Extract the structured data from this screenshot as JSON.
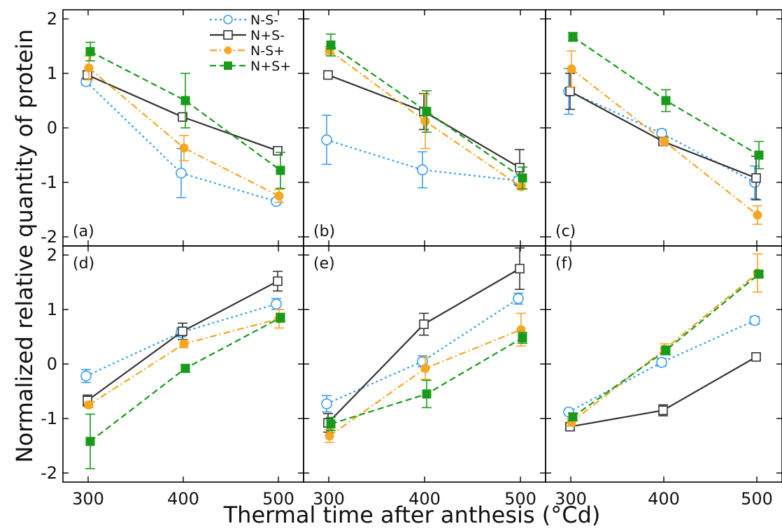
{
  "figure": {
    "ylabel": "Normalized relative quantity of protein",
    "xlabel": "Thermal time after anthesis (°Cd)"
  },
  "series_styles": [
    {
      "name": "N-S-",
      "color": "#3b9ff0",
      "dash": "3,4",
      "marker": "circle-open"
    },
    {
      "name": "N+S-",
      "color": "#333333",
      "dash": "",
      "marker": "square-open"
    },
    {
      "name": "N-S+",
      "color": "#f5a623",
      "dash": "10,4,2,4",
      "marker": "circle-filled"
    },
    {
      "name": "N+S+",
      "color": "#1a9a1a",
      "dash": "9,5",
      "marker": "square-filled"
    }
  ],
  "chart_data": [
    {
      "type": "line",
      "label": "(a)",
      "x": [
        300,
        400,
        500
      ],
      "xticks": [
        300,
        400,
        500
      ],
      "yticks": [
        -2,
        -1,
        0,
        1,
        2
      ],
      "xlim": [
        275,
        525
      ],
      "ylim": [
        -2.2,
        2.2
      ],
      "series": [
        {
          "name": "N-S-",
          "values": [
            0.85,
            -0.83,
            -1.35
          ],
          "err": [
            0.06,
            0.45,
            0.05
          ]
        },
        {
          "name": "N+S-",
          "values": [
            0.97,
            0.2,
            -0.42
          ],
          "err": [
            0.06,
            0.05,
            0.07
          ]
        },
        {
          "name": "N-S+",
          "values": [
            1.1,
            -0.37,
            -1.25
          ],
          "err": [
            0.22,
            0.23,
            0.12
          ]
        },
        {
          "name": "N+S+",
          "values": [
            1.4,
            0.5,
            -0.78
          ],
          "err": [
            0.17,
            0.5,
            0.33
          ]
        }
      ]
    },
    {
      "type": "line",
      "label": "(b)",
      "x": [
        300,
        400,
        500
      ],
      "xticks": [
        300,
        400,
        500
      ],
      "yticks": [
        -2,
        -1,
        0,
        1,
        2
      ],
      "xlim": [
        275,
        525
      ],
      "ylim": [
        -2.2,
        2.2
      ],
      "series": [
        {
          "name": "N-S-",
          "values": [
            -0.22,
            -0.77,
            -0.97
          ],
          "err": [
            0.45,
            0.33,
            0.07
          ]
        },
        {
          "name": "N+S-",
          "values": [
            0.97,
            0.3,
            -0.73
          ],
          "err": [
            0.05,
            0.33,
            0.33
          ]
        },
        {
          "name": "N-S+",
          "values": [
            1.42,
            0.12,
            -1.08
          ],
          "err": [
            0.07,
            0.5,
            0.05
          ]
        },
        {
          "name": "N+S+",
          "values": [
            1.52,
            0.3,
            -0.92
          ],
          "err": [
            0.2,
            0.38,
            0.2
          ]
        }
      ]
    },
    {
      "type": "line",
      "label": "(c)",
      "x": [
        300,
        400,
        500
      ],
      "xticks": [
        300,
        400,
        500
      ],
      "yticks": [
        -2,
        -1,
        0,
        1,
        2
      ],
      "xlim": [
        275,
        525
      ],
      "ylim": [
        -2.2,
        2.2
      ],
      "series": [
        {
          "name": "N-S-",
          "values": [
            0.67,
            -0.1,
            -1.0
          ],
          "err": [
            0.42,
            0.07,
            0.3
          ]
        },
        {
          "name": "N+S-",
          "values": [
            0.67,
            -0.25,
            -0.92
          ],
          "err": [
            0.33,
            0.05,
            0.4
          ]
        },
        {
          "name": "N-S+",
          "values": [
            1.08,
            -0.25,
            -1.6
          ],
          "err": [
            0.33,
            0.07,
            0.17
          ]
        },
        {
          "name": "N+S+",
          "values": [
            1.67,
            0.5,
            -0.5
          ],
          "err": [
            0.08,
            0.2,
            0.25
          ]
        }
      ]
    },
    {
      "type": "line",
      "label": "(d)",
      "x": [
        300,
        400,
        500
      ],
      "xticks": [
        300,
        400,
        500
      ],
      "yticks": [
        -2,
        -1,
        0,
        1,
        2
      ],
      "xlim": [
        275,
        525
      ],
      "ylim": [
        -2.2,
        2.2
      ],
      "series": [
        {
          "name": "N-S-",
          "values": [
            -0.22,
            0.58,
            1.1
          ],
          "err": [
            0.12,
            0.08,
            0.1
          ]
        },
        {
          "name": "N+S-",
          "values": [
            -0.67,
            0.6,
            1.52
          ],
          "err": [
            0.1,
            0.15,
            0.18
          ]
        },
        {
          "name": "N-S+",
          "values": [
            -0.75,
            0.37,
            0.83
          ],
          "err": [
            0.05,
            0.07,
            0.17
          ]
        },
        {
          "name": "N+S+",
          "values": [
            -1.42,
            -0.08,
            0.85
          ],
          "err": [
            0.5,
            0.07,
            0.08
          ]
        }
      ]
    },
    {
      "type": "line",
      "label": "(e)",
      "x": [
        300,
        400,
        500
      ],
      "xticks": [
        300,
        400,
        500
      ],
      "yticks": [
        -2,
        -1,
        0,
        1,
        2
      ],
      "xlim": [
        275,
        525
      ],
      "ylim": [
        -2.2,
        2.2
      ],
      "series": [
        {
          "name": "N-S-",
          "values": [
            -0.73,
            0.05,
            1.2
          ],
          "err": [
            0.15,
            0.1,
            0.1
          ]
        },
        {
          "name": "N+S-",
          "values": [
            -1.08,
            0.73,
            1.75
          ],
          "err": [
            0.17,
            0.2,
            0.38
          ]
        },
        {
          "name": "N-S+",
          "values": [
            -1.32,
            -0.08,
            0.63
          ],
          "err": [
            0.12,
            0.2,
            0.3
          ]
        },
        {
          "name": "N+S+",
          "values": [
            -1.1,
            -0.55,
            0.48
          ],
          "err": [
            0.12,
            0.25,
            0.1
          ]
        }
      ]
    },
    {
      "type": "line",
      "label": "(f)",
      "x": [
        300,
        400,
        500
      ],
      "xticks": [
        300,
        400,
        500
      ],
      "yticks": [
        -2,
        -1,
        0,
        1,
        2
      ],
      "xlim": [
        275,
        525
      ],
      "ylim": [
        -2.2,
        2.2
      ],
      "series": [
        {
          "name": "N-S-",
          "values": [
            -0.88,
            0.03,
            0.8
          ],
          "err": [
            0.05,
            0.07,
            0.07
          ]
        },
        {
          "name": "N+S-",
          "values": [
            -1.15,
            -0.85,
            0.13
          ],
          "err": [
            0.05,
            0.1,
            0.05
          ]
        },
        {
          "name": "N-S+",
          "values": [
            -1.07,
            0.27,
            1.67
          ],
          "err": [
            0.07,
            0.1,
            0.35
          ]
        },
        {
          "name": "N+S+",
          "values": [
            -0.97,
            0.25,
            1.65
          ],
          "err": [
            0.07,
            0.08,
            0.05
          ]
        }
      ]
    }
  ]
}
